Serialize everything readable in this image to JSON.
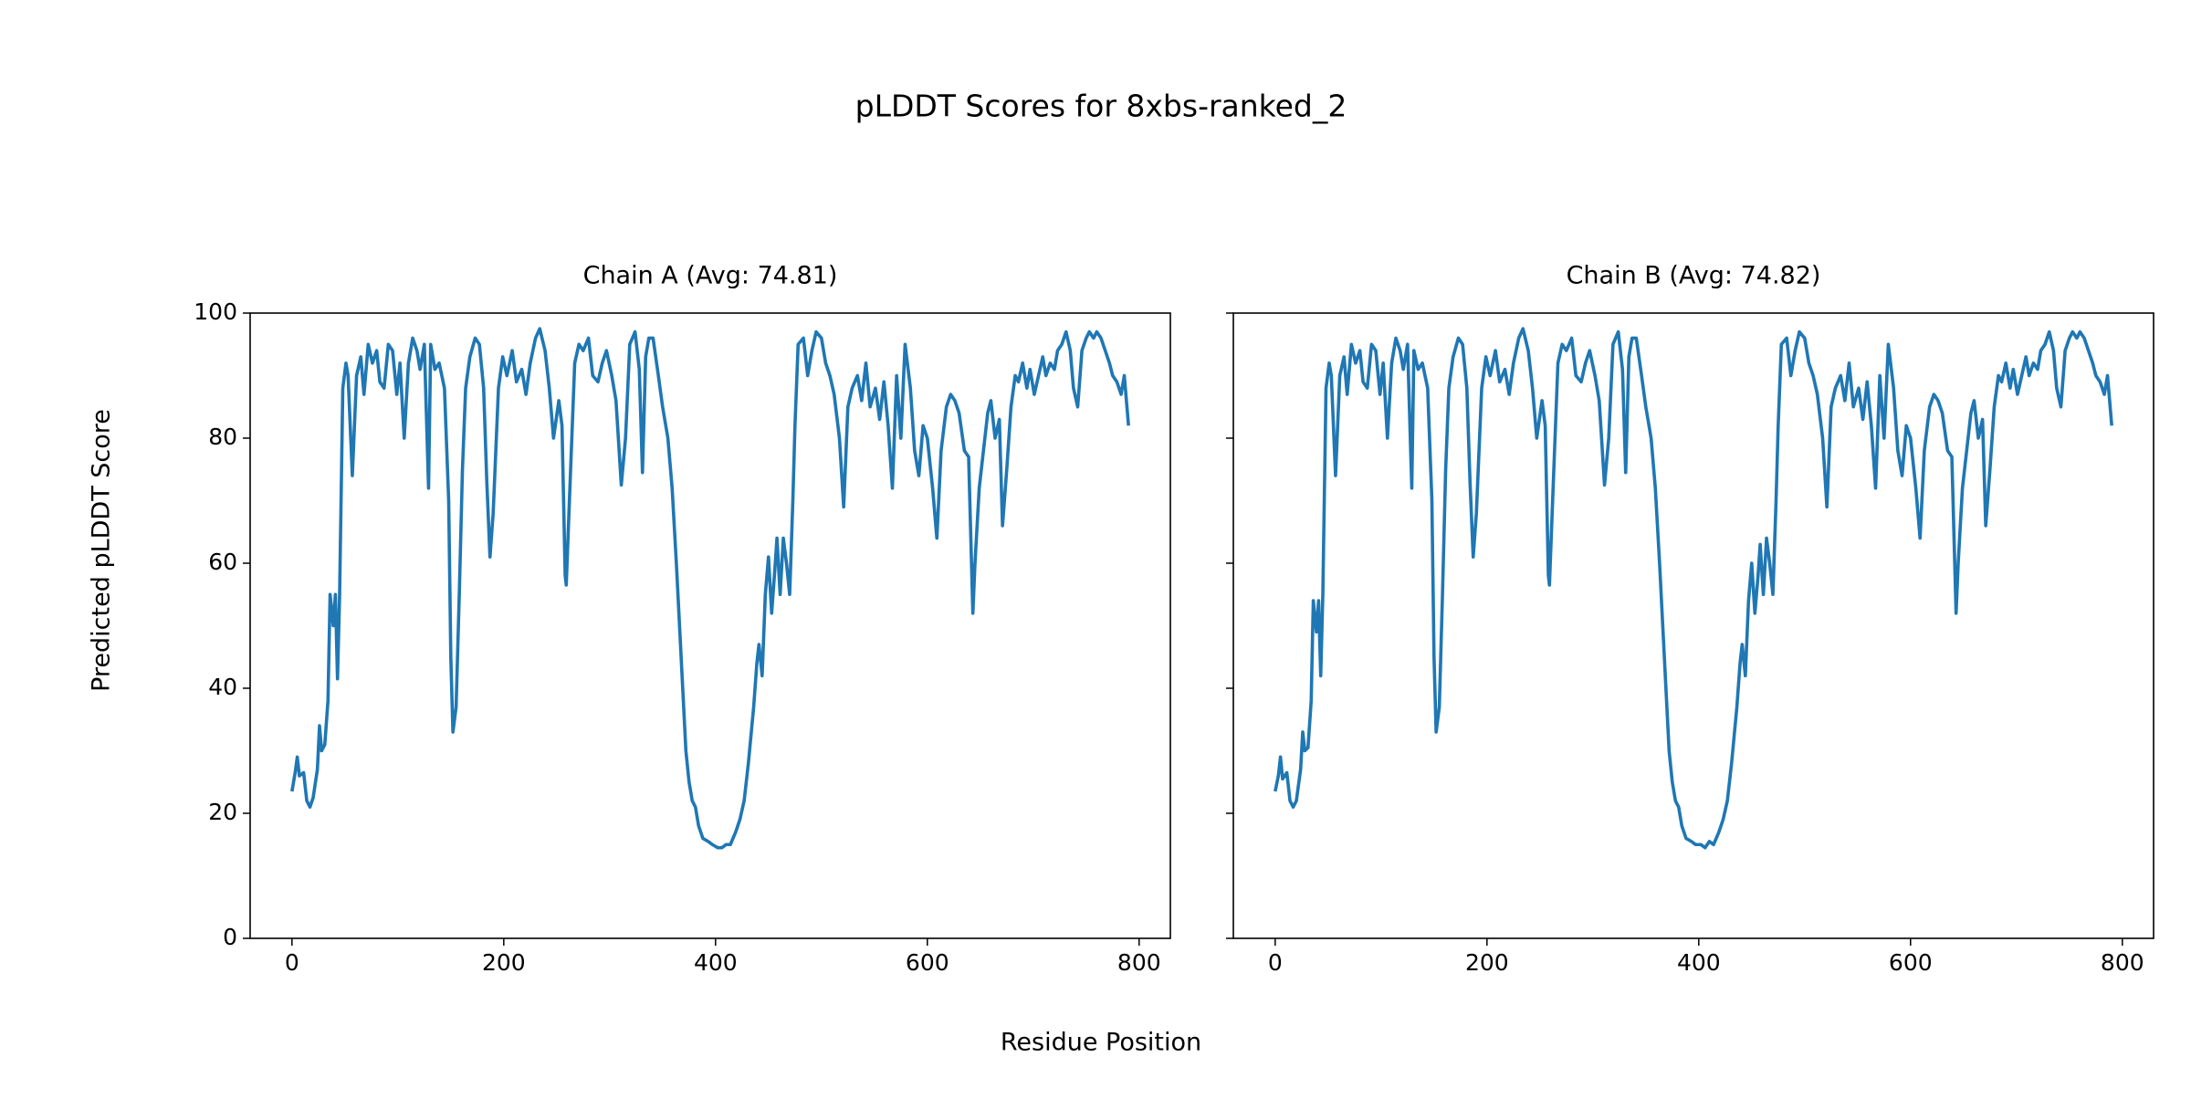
{
  "title": "pLDDT Scores for 8xbs-ranked_2",
  "xlabel": "Residue Position",
  "ylabel": "Predicted pLDDT Score",
  "chart_data": [
    {
      "type": "line",
      "title": "Chain A (Avg: 74.81)",
      "show_ytick_labels": true,
      "xlim": [
        -39.5,
        829.5
      ],
      "xticks": [
        0,
        200,
        400,
        600,
        800
      ],
      "ylim": [
        0,
        100
      ],
      "yticks": [
        0,
        20,
        40,
        60,
        80,
        100
      ],
      "x": [
        0,
        3,
        5,
        7,
        11,
        14,
        17,
        20,
        24,
        26,
        28,
        31,
        34,
        36,
        39,
        41,
        43,
        45,
        48,
        51,
        53,
        57,
        61,
        65,
        68,
        72,
        76,
        80,
        83,
        87,
        91,
        95,
        99,
        102,
        106,
        110,
        114,
        118,
        121,
        125,
        129,
        131,
        135,
        139,
        144,
        148,
        150,
        152,
        155,
        158,
        161,
        164,
        168,
        173,
        177,
        181,
        184,
        187,
        190,
        195,
        199,
        203,
        208,
        212,
        217,
        221,
        225,
        230,
        234,
        239,
        243,
        247,
        252,
        255,
        258,
        259,
        262,
        267,
        271,
        275,
        280,
        284,
        289,
        293,
        297,
        302,
        306,
        311,
        315,
        319,
        324,
        328,
        331,
        334,
        337,
        341,
        346,
        350,
        355,
        359,
        363,
        366,
        369,
        372,
        375,
        378,
        381,
        384,
        388,
        393,
        397,
        402,
        406,
        410,
        414,
        419,
        423,
        427,
        431,
        436,
        439,
        441,
        444,
        447,
        450,
        453,
        456,
        458,
        461,
        464,
        467,
        470,
        473,
        475,
        478,
        483,
        487,
        491,
        495,
        500,
        504,
        508,
        512,
        517,
        521,
        525,
        529,
        534,
        538,
        542,
        546,
        551,
        555,
        559,
        563,
        567,
        571,
        575,
        579,
        584,
        588,
        592,
        596,
        600,
        605,
        609,
        613,
        618,
        622,
        626,
        630,
        635,
        639,
        643,
        645,
        649,
        653,
        657,
        660,
        664,
        668,
        671,
        675,
        679,
        683,
        686,
        690,
        694,
        697,
        701,
        705,
        709,
        712,
        716,
        720,
        723,
        727,
        731,
        735,
        738,
        742,
        746,
        750,
        753,
        757,
        760,
        764,
        768,
        772,
        775,
        779,
        783,
        786,
        790
      ],
      "series": [
        {
          "color": "#1f77b4",
          "values": [
            23.5,
            26.5,
            29,
            26,
            26.5,
            22,
            21,
            22.5,
            27,
            34,
            30,
            31,
            38,
            55,
            50,
            55,
            41.5,
            55,
            88,
            92,
            90,
            74,
            90,
            93,
            87,
            95,
            92,
            94,
            89,
            88,
            95,
            94,
            87,
            92,
            80,
            92,
            96,
            94,
            91,
            95,
            72,
            95,
            91,
            92,
            88,
            70,
            45,
            33,
            37,
            55,
            75,
            88,
            93,
            96,
            95,
            88,
            73,
            61,
            68,
            88,
            93,
            90,
            94,
            89,
            91,
            87,
            92,
            96,
            97.5,
            94,
            88,
            80,
            86,
            82,
            58,
            56.5,
            70,
            92,
            95,
            94,
            96,
            90,
            89,
            92,
            94,
            90,
            86,
            72.5,
            80,
            95,
            97,
            91,
            74.5,
            93,
            96,
            96,
            90,
            85,
            80,
            72,
            60,
            50,
            40,
            30,
            25,
            22,
            21,
            18,
            16,
            15.5,
            15,
            14.5,
            14.5,
            15,
            15,
            17,
            19,
            22,
            28,
            37,
            44,
            47,
            42,
            55,
            61,
            52,
            59,
            64,
            55,
            64,
            60,
            55,
            70,
            82,
            95,
            96,
            90,
            94,
            97,
            96,
            92,
            90,
            87,
            80,
            69,
            85,
            88,
            90,
            86,
            92,
            85,
            88,
            83,
            89,
            82,
            72,
            90,
            80,
            95,
            88,
            78,
            74,
            82,
            80,
            72,
            64,
            78,
            85,
            87,
            86,
            84,
            78,
            77,
            52,
            60,
            72,
            78,
            84,
            86,
            80,
            83,
            66,
            75,
            85,
            90,
            89,
            92,
            88,
            91,
            87,
            90,
            93,
            90,
            92,
            91,
            94,
            95,
            97,
            94,
            88,
            85,
            94,
            96,
            97,
            96,
            97,
            96,
            94,
            92,
            90,
            89,
            87,
            90,
            82
          ]
        }
      ]
    },
    {
      "type": "line",
      "title": "Chain B (Avg: 74.82)",
      "show_ytick_labels": false,
      "xlim": [
        -39.5,
        829.5
      ],
      "xticks": [
        0,
        200,
        400,
        600,
        800
      ],
      "ylim": [
        0,
        100
      ],
      "yticks": [
        0,
        20,
        40,
        60,
        80,
        100
      ],
      "x": [
        0,
        3,
        5,
        7,
        11,
        14,
        17,
        20,
        24,
        26,
        28,
        31,
        34,
        36,
        39,
        41,
        43,
        45,
        48,
        51,
        53,
        57,
        61,
        65,
        68,
        72,
        76,
        80,
        83,
        87,
        91,
        95,
        99,
        102,
        106,
        110,
        114,
        118,
        121,
        125,
        129,
        131,
        135,
        139,
        144,
        148,
        150,
        152,
        155,
        158,
        161,
        164,
        168,
        173,
        177,
        181,
        184,
        187,
        190,
        195,
        199,
        203,
        208,
        212,
        217,
        221,
        225,
        230,
        234,
        239,
        243,
        247,
        252,
        255,
        258,
        259,
        262,
        267,
        271,
        275,
        280,
        284,
        289,
        293,
        297,
        302,
        306,
        311,
        315,
        319,
        324,
        328,
        331,
        334,
        337,
        341,
        346,
        350,
        355,
        359,
        363,
        366,
        369,
        372,
        375,
        378,
        381,
        384,
        388,
        393,
        397,
        402,
        406,
        410,
        414,
        419,
        423,
        427,
        431,
        436,
        439,
        441,
        444,
        447,
        450,
        453,
        456,
        458,
        461,
        464,
        467,
        470,
        473,
        475,
        478,
        483,
        487,
        491,
        495,
        500,
        504,
        508,
        512,
        517,
        521,
        525,
        529,
        534,
        538,
        542,
        546,
        551,
        555,
        559,
        563,
        567,
        571,
        575,
        579,
        584,
        588,
        592,
        596,
        600,
        605,
        609,
        613,
        618,
        622,
        626,
        630,
        635,
        639,
        643,
        645,
        649,
        653,
        657,
        660,
        664,
        668,
        671,
        675,
        679,
        683,
        686,
        690,
        694,
        697,
        701,
        705,
        709,
        712,
        716,
        720,
        723,
        727,
        731,
        735,
        738,
        742,
        746,
        750,
        753,
        757,
        760,
        764,
        768,
        772,
        775,
        779,
        783,
        786,
        790
      ],
      "series": [
        {
          "color": "#1f77b4",
          "values": [
            23.5,
            26,
            29,
            25.5,
            26.5,
            22,
            21,
            22,
            27,
            33,
            30,
            30.5,
            38,
            54,
            49,
            54,
            42,
            55,
            88,
            92,
            90,
            74,
            90,
            93,
            87,
            95,
            92,
            94,
            89,
            88,
            95,
            94,
            87,
            92,
            80,
            92,
            96,
            94,
            91,
            95,
            72,
            94,
            91,
            92,
            88,
            70,
            45,
            33,
            37,
            55,
            75,
            88,
            93,
            96,
            95,
            88,
            73,
            61,
            68,
            88,
            93,
            90,
            94,
            89,
            91,
            87,
            92,
            96,
            97.5,
            94,
            88,
            80,
            86,
            82,
            58,
            56.5,
            70,
            92,
            95,
            94,
            96,
            90,
            89,
            92,
            94,
            90,
            86,
            72.5,
            80,
            95,
            97,
            91,
            74.5,
            93,
            96,
            96,
            90,
            85,
            80,
            72,
            60,
            50,
            40,
            30,
            25,
            22,
            21,
            18,
            16,
            15.5,
            15,
            15,
            14.5,
            15.5,
            15,
            17,
            19,
            22,
            28,
            37,
            44,
            47,
            42,
            54,
            60,
            52,
            58,
            63,
            55,
            64,
            60,
            55,
            70,
            82,
            95,
            96,
            90,
            94,
            97,
            96,
            92,
            90,
            87,
            80,
            69,
            85,
            88,
            90,
            86,
            92,
            85,
            88,
            83,
            89,
            82,
            72,
            90,
            80,
            95,
            88,
            78,
            74,
            82,
            80,
            72,
            64,
            78,
            85,
            87,
            86,
            84,
            78,
            77,
            52,
            60,
            72,
            78,
            84,
            86,
            80,
            83,
            66,
            75,
            85,
            90,
            89,
            92,
            88,
            91,
            87,
            90,
            93,
            90,
            92,
            91,
            94,
            95,
            97,
            94,
            88,
            85,
            94,
            96,
            97,
            96,
            97,
            96,
            94,
            92,
            90,
            89,
            87,
            90,
            82
          ]
        }
      ]
    }
  ]
}
